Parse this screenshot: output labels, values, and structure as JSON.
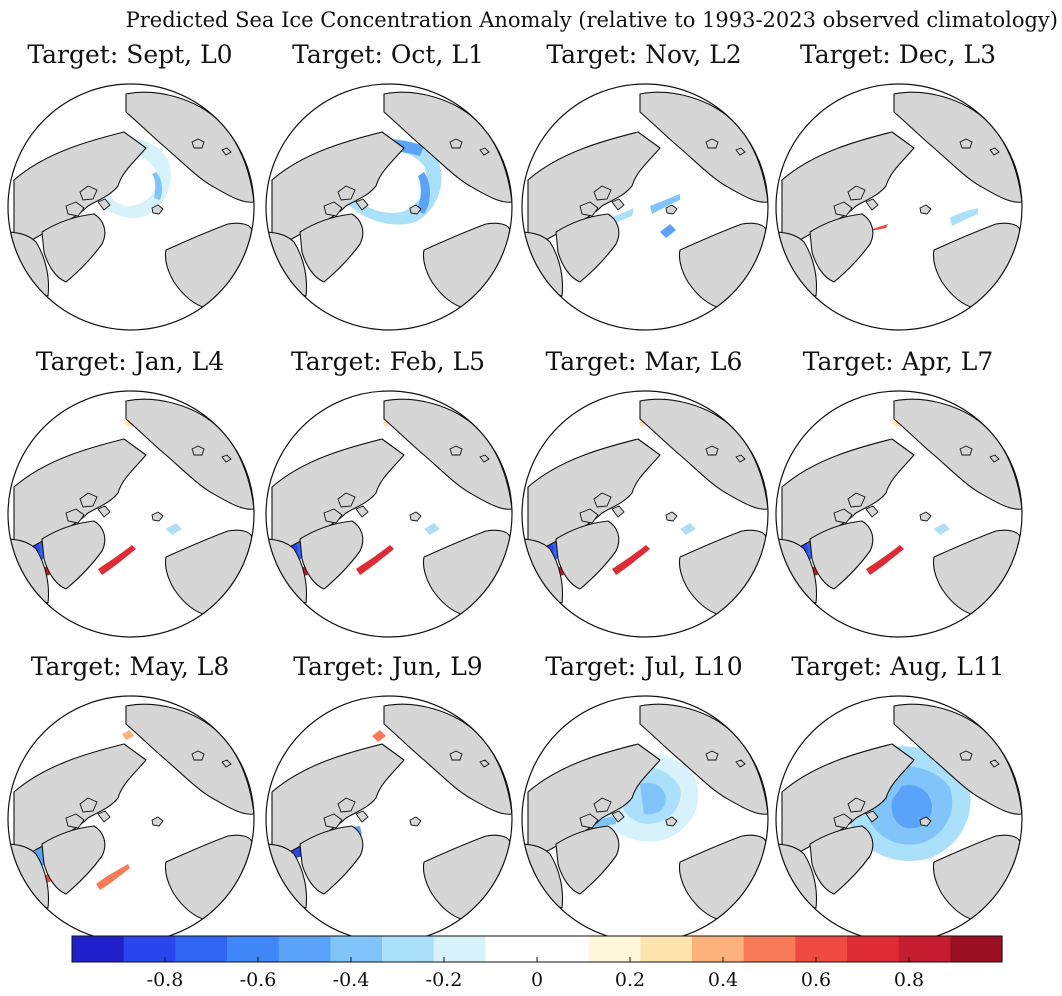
{
  "figure": {
    "title": "Predicted Sea Ice Concentration Anomaly (relative to 1993-2023 observed climatology)"
  },
  "panels": [
    {
      "label": "Target: Sept, L0",
      "month": "Sept",
      "lead": "L0",
      "pattern": "sept"
    },
    {
      "label": "Target: Oct, L1",
      "month": "Oct",
      "lead": "L1",
      "pattern": "oct"
    },
    {
      "label": "Target: Nov, L2",
      "month": "Nov",
      "lead": "L2",
      "pattern": "nov"
    },
    {
      "label": "Target: Dec, L3",
      "month": "Dec",
      "lead": "L3",
      "pattern": "dec"
    },
    {
      "label": "Target: Jan, L4",
      "month": "Jan",
      "lead": "L4",
      "pattern": "winter"
    },
    {
      "label": "Target: Feb, L5",
      "month": "Feb",
      "lead": "L5",
      "pattern": "winter"
    },
    {
      "label": "Target: Mar, L6",
      "month": "Mar",
      "lead": "L6",
      "pattern": "winter"
    },
    {
      "label": "Target: Apr, L7",
      "month": "Apr",
      "lead": "L7",
      "pattern": "winter"
    },
    {
      "label": "Target: May, L8",
      "month": "May",
      "lead": "L8",
      "pattern": "may"
    },
    {
      "label": "Target: Jun, L9",
      "month": "Jun",
      "lead": "L9",
      "pattern": "jun"
    },
    {
      "label": "Target: Jul, L10",
      "month": "Jul",
      "lead": "L10",
      "pattern": "jul"
    },
    {
      "label": "Target: Aug, L11",
      "month": "Aug",
      "lead": "L11",
      "pattern": "aug"
    }
  ],
  "colorbar": {
    "range": [
      -1,
      1
    ],
    "ticks": [
      -0.8,
      -0.6,
      -0.4,
      -0.2,
      0,
      0.2,
      0.4,
      0.6,
      0.8
    ],
    "tick_labels": [
      "-0.8",
      "-0.6",
      "-0.4",
      "-0.2",
      "0",
      "0.2",
      "0.4",
      "0.6",
      "0.8"
    ],
    "colors": [
      "#1f1fcc",
      "#2a45ee",
      "#2f66f4",
      "#3f86f6",
      "#5aa3f8",
      "#80c4fa",
      "#abe0fb",
      "#d8f2fc",
      "#ffffff",
      "#ffffff",
      "#fff8dc",
      "#fde5b0",
      "#fcb27a",
      "#f87b57",
      "#ee4a42",
      "#de2b35",
      "#c41d2f",
      "#9a0f22"
    ]
  },
  "land_color": "#d6d6d6"
}
